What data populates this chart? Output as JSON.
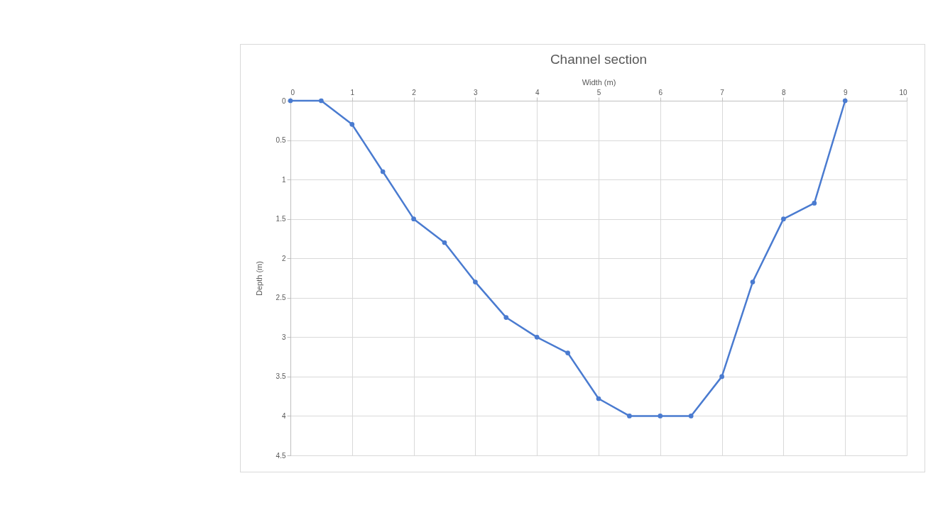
{
  "chart_data": {
    "type": "line",
    "title": "Channel section",
    "xlabel": "Width (m)",
    "ylabel": "Depth (m)",
    "x": [
      0,
      0.5,
      1,
      1.5,
      2,
      2.5,
      3,
      3.5,
      4,
      4.5,
      5,
      5.5,
      6,
      6.5,
      7,
      7.5,
      8,
      8.5,
      9
    ],
    "series": [
      {
        "color": "#4a7bd0",
        "values": [
          0,
          0,
          0.3,
          0.9,
          1.5,
          1.8,
          2.3,
          2.75,
          3,
          3.2,
          3.78,
          4,
          4,
          4,
          3.5,
          2.3,
          1.5,
          1.3,
          0
        ]
      }
    ],
    "xlim": [
      0,
      10
    ],
    "xticks": [
      0,
      1,
      2,
      3,
      4,
      5,
      6,
      7,
      8,
      9,
      10
    ],
    "ylim": [
      4.5,
      0
    ],
    "yticks": [
      0,
      0.5,
      1,
      1.5,
      2,
      2.5,
      3,
      3.5,
      4,
      4.5
    ],
    "grid": true,
    "marker": "circle",
    "line_style": "solid"
  }
}
